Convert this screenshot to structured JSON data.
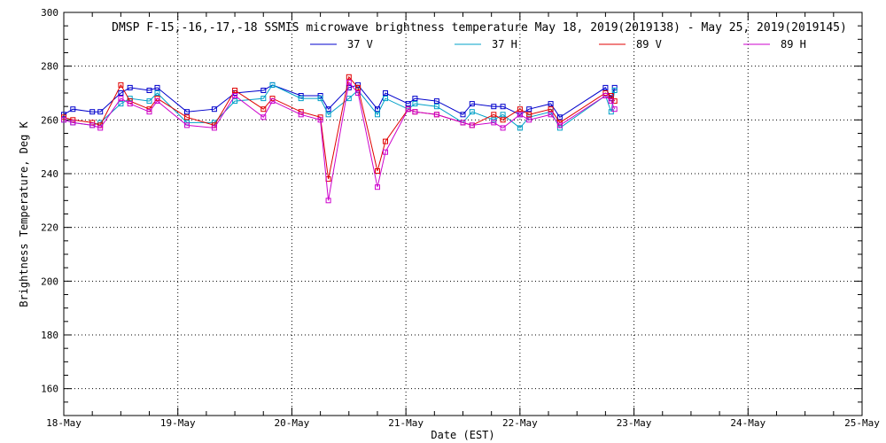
{
  "chart_data": {
    "type": "line",
    "title": "DMSP F-15,-16,-17,-18 SSMIS microwave brightness temperature May 18, 2019(2019138) - May 25, 2019(2019145)",
    "xlabel": "Date (EST)",
    "ylabel": "Brightness Temperature, Deg K",
    "xlim": [
      0,
      7
    ],
    "ylim": [
      150,
      300
    ],
    "yticks": [
      160,
      180,
      200,
      220,
      240,
      260,
      280,
      300
    ],
    "ytick_labels": [
      "160",
      "180",
      "200",
      "220",
      "240",
      "260",
      "280",
      "300"
    ],
    "xticks": [
      0,
      1,
      2,
      3,
      4,
      5,
      6,
      7
    ],
    "xtick_labels": [
      "18-May",
      "19-May",
      "20-May",
      "21-May",
      "22-May",
      "23-May",
      "24-May",
      "25-May"
    ],
    "grid": true,
    "legend_position": "top-center",
    "x": [
      0.0,
      0.08,
      0.25,
      0.32,
      0.5,
      0.58,
      0.75,
      0.82,
      1.08,
      1.32,
      1.5,
      1.75,
      1.83,
      2.08,
      2.25,
      2.32,
      2.5,
      2.58,
      2.75,
      2.82,
      3.02,
      3.08,
      3.27,
      3.5,
      3.58,
      3.77,
      3.85,
      4.0,
      4.08,
      4.27,
      4.35,
      4.75,
      4.8,
      4.83
    ],
    "series": [
      {
        "name": "37 V",
        "color": "#0000cc",
        "values": [
          262,
          264,
          263,
          263,
          270,
          272,
          271,
          272,
          263,
          264,
          270,
          271,
          273,
          269,
          269,
          264,
          272,
          273,
          264,
          270,
          266,
          268,
          267,
          262,
          266,
          265,
          265,
          262,
          264,
          266,
          261,
          272,
          268,
          272
        ]
      },
      {
        "name": "37 H",
        "color": "#00a0c8",
        "values": [
          260,
          259,
          258,
          259,
          266,
          268,
          267,
          270,
          259,
          259,
          267,
          268,
          273,
          268,
          268,
          262,
          268,
          271,
          262,
          268,
          264,
          266,
          265,
          259,
          263,
          260,
          262,
          257,
          261,
          263,
          257,
          269,
          263,
          271
        ]
      },
      {
        "name": "89 V",
        "color": "#e00000",
        "values": [
          261,
          260,
          259,
          258,
          273,
          267,
          264,
          268,
          261,
          258,
          271,
          264,
          268,
          263,
          261,
          238,
          276,
          272,
          241,
          252,
          264,
          263,
          262,
          259,
          258,
          262,
          260,
          264,
          262,
          264,
          259,
          270,
          269,
          267
        ]
      },
      {
        "name": "89 H",
        "color": "#cc00cc",
        "values": [
          260,
          259,
          258,
          257,
          268,
          266,
          263,
          267,
          258,
          257,
          269,
          261,
          267,
          262,
          260,
          230,
          274,
          270,
          235,
          248,
          264,
          263,
          262,
          259,
          258,
          259,
          257,
          262,
          260,
          262,
          258,
          269,
          267,
          264
        ]
      }
    ]
  }
}
